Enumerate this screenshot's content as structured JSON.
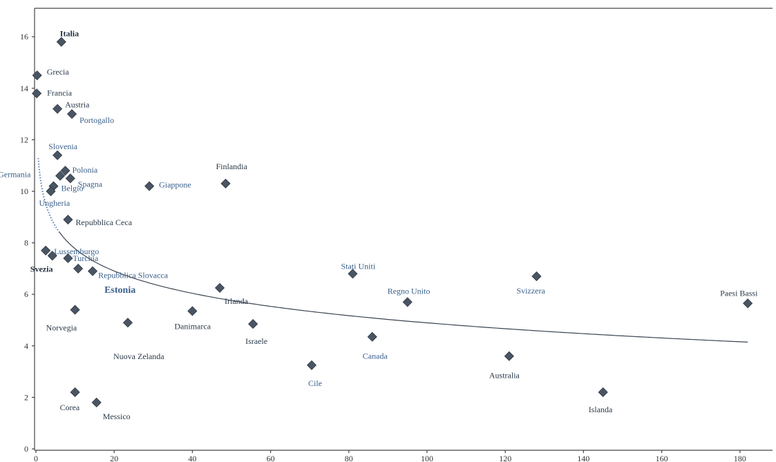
{
  "chart_data": {
    "type": "scatter",
    "title": "",
    "xlabel": "",
    "ylabel": "",
    "xlim": [
      0,
      185
    ],
    "ylim": [
      0,
      16.8
    ],
    "x_ticks": [
      0,
      20,
      40,
      60,
      80,
      100,
      120,
      140,
      160,
      180
    ],
    "y_ticks": [
      0,
      2,
      4,
      6,
      8,
      10,
      12,
      14,
      16
    ],
    "grid": false,
    "legend": "none",
    "marker_color": "#4a5564",
    "trendline": {
      "type": "log",
      "color": "#3a4452",
      "near_axis_color": "#4d78b3"
    },
    "points": [
      {
        "label": "Italia",
        "x": 6.5,
        "y": 15.8
      },
      {
        "label": "Grecia",
        "x": 0.3,
        "y": 14.5
      },
      {
        "label": "Francia",
        "x": 0.2,
        "y": 13.8
      },
      {
        "label": "Austria",
        "x": 5.5,
        "y": 13.2
      },
      {
        "label": "Portogallo",
        "x": 9.2,
        "y": 13.0
      },
      {
        "label": "Slovenia",
        "x": 5.5,
        "y": 11.4
      },
      {
        "label": "Polonia",
        "x": 7.5,
        "y": 10.8
      },
      {
        "label": "Germania",
        "x": 6.2,
        "y": 10.6
      },
      {
        "label": "Spagna",
        "x": 8.8,
        "y": 10.5
      },
      {
        "label": "Belgio",
        "x": 4.5,
        "y": 10.2
      },
      {
        "label": "Ungheria",
        "x": 3.8,
        "y": 10.0
      },
      {
        "label": "Giappone",
        "x": 29,
        "y": 10.2
      },
      {
        "label": "Finlandia",
        "x": 48.5,
        "y": 10.3
      },
      {
        "label": "Repubblica Ceca",
        "x": 8.2,
        "y": 8.9
      },
      {
        "label": "Lussemburgo",
        "x": 2.5,
        "y": 7.7
      },
      {
        "label": "Turchia",
        "x": 8.2,
        "y": 7.4
      },
      {
        "label": "Svezia",
        "x": 4.2,
        "y": 7.5
      },
      {
        "label": "Repubblica Slovacca",
        "x": 14.5,
        "y": 6.9
      },
      {
        "label": "Estonia",
        "x": 10.8,
        "y": 7.0
      },
      {
        "label": "Stati Uniti",
        "x": 81,
        "y": 6.8
      },
      {
        "label": "Svizzera",
        "x": 128,
        "y": 6.7
      },
      {
        "label": "Irlanda",
        "x": 47,
        "y": 6.25
      },
      {
        "label": "Regno Unito",
        "x": 95,
        "y": 5.7
      },
      {
        "label": "Paesi Bassi",
        "x": 182,
        "y": 5.65
      },
      {
        "label": "Norvegia",
        "x": 10,
        "y": 5.4
      },
      {
        "label": "Danimarca",
        "x": 40,
        "y": 5.35
      },
      {
        "label": "Nuova Zelanda",
        "x": 23.5,
        "y": 4.9
      },
      {
        "label": "Israele",
        "x": 55.5,
        "y": 4.85
      },
      {
        "label": "Canada",
        "x": 86,
        "y": 4.35
      },
      {
        "label": "Australia",
        "x": 121,
        "y": 3.6
      },
      {
        "label": "Cile",
        "x": 70.5,
        "y": 3.25
      },
      {
        "label": "Islanda",
        "x": 145,
        "y": 2.2
      },
      {
        "label": "Corea",
        "x": 10,
        "y": 2.2
      },
      {
        "label": "Messico",
        "x": 15.5,
        "y": 1.8
      }
    ]
  }
}
